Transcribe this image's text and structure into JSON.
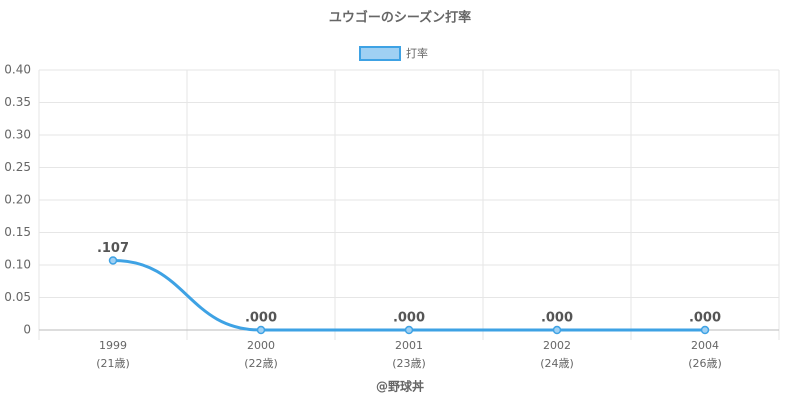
{
  "chart_data": {
    "type": "line",
    "title": "ユウゴーのシーズン打率",
    "categories": [
      "1999",
      "2000",
      "2001",
      "2002",
      "2004"
    ],
    "ages": [
      "(21歳)",
      "(22歳)",
      "(23歳)",
      "(24歳)",
      "(26歳)"
    ],
    "series": [
      {
        "name": "打率",
        "color": "#3ea2e4",
        "fill": "#9fd0f3",
        "values": [
          0.107,
          0,
          0,
          0,
          0
        ],
        "value_labels": [
          ".107",
          ".000",
          ".000",
          ".000",
          ".000"
        ]
      }
    ],
    "ylim": [
      0,
      0.4
    ],
    "yticks": [
      0,
      0.05,
      {
        "value": 0.1,
        "label": "0.10"
      },
      0.15,
      {
        "value": 0.2,
        "label": "0.20"
      },
      0.25,
      {
        "value": 0.3,
        "label": "0.30"
      },
      0.35,
      {
        "value": 0.4,
        "label": "0.40"
      }
    ],
    "grid": true,
    "legend": "top",
    "credit": "@野球丼"
  }
}
